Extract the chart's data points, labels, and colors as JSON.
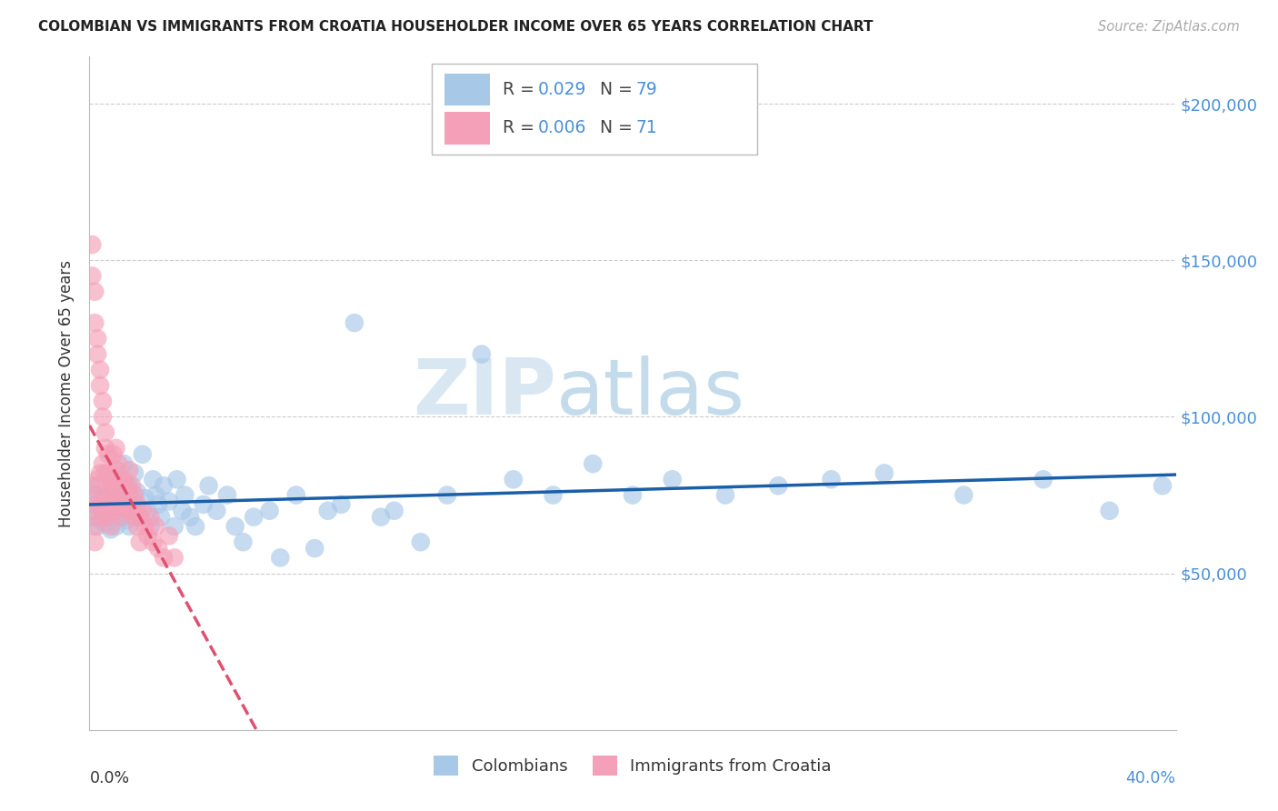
{
  "title": "COLOMBIAN VS IMMIGRANTS FROM CROATIA HOUSEHOLDER INCOME OVER 65 YEARS CORRELATION CHART",
  "source": "Source: ZipAtlas.com",
  "ylabel": "Householder Income Over 65 years",
  "ytick_values": [
    50000,
    100000,
    150000,
    200000
  ],
  "ylim": [
    0,
    215000
  ],
  "xlim": [
    0.0,
    0.41
  ],
  "colombian_color": "#a8c8e8",
  "croatia_color": "#f4a0b8",
  "colombian_line_color": "#1a5fa8",
  "croatia_line_color": "#e05070",
  "watermark_zip": "ZIP",
  "watermark_atlas": "atlas",
  "background_color": "#ffffff",
  "colombians_x": [
    0.001,
    0.002,
    0.002,
    0.003,
    0.003,
    0.004,
    0.004,
    0.005,
    0.005,
    0.006,
    0.006,
    0.007,
    0.007,
    0.008,
    0.008,
    0.009,
    0.009,
    0.01,
    0.01,
    0.011,
    0.011,
    0.012,
    0.013,
    0.013,
    0.014,
    0.015,
    0.015,
    0.016,
    0.017,
    0.018,
    0.019,
    0.02,
    0.021,
    0.022,
    0.023,
    0.024,
    0.025,
    0.026,
    0.027,
    0.028,
    0.03,
    0.032,
    0.033,
    0.035,
    0.036,
    0.038,
    0.04,
    0.043,
    0.045,
    0.048,
    0.052,
    0.055,
    0.058,
    0.062,
    0.068,
    0.072,
    0.078,
    0.085,
    0.09,
    0.095,
    0.1,
    0.11,
    0.115,
    0.125,
    0.135,
    0.148,
    0.16,
    0.175,
    0.19,
    0.205,
    0.22,
    0.24,
    0.26,
    0.28,
    0.3,
    0.33,
    0.36,
    0.385,
    0.405
  ],
  "colombians_y": [
    72000,
    68000,
    75000,
    65000,
    78000,
    73000,
    67000,
    71000,
    69000,
    74000,
    66000,
    72000,
    68000,
    76000,
    64000,
    80000,
    70000,
    75000,
    65000,
    78000,
    72000,
    68000,
    85000,
    73000,
    67000,
    78000,
    65000,
    72000,
    82000,
    76000,
    68000,
    88000,
    74000,
    70000,
    65000,
    80000,
    75000,
    72000,
    68000,
    78000,
    73000,
    65000,
    80000,
    70000,
    75000,
    68000,
    65000,
    72000,
    78000,
    70000,
    75000,
    65000,
    60000,
    68000,
    70000,
    55000,
    75000,
    58000,
    70000,
    72000,
    130000,
    68000,
    70000,
    60000,
    75000,
    120000,
    80000,
    75000,
    85000,
    75000,
    80000,
    75000,
    78000,
    80000,
    82000,
    75000,
    80000,
    70000,
    78000
  ],
  "croatia_x": [
    0.001,
    0.001,
    0.001,
    0.001,
    0.002,
    0.002,
    0.002,
    0.002,
    0.002,
    0.003,
    0.003,
    0.003,
    0.003,
    0.004,
    0.004,
    0.004,
    0.004,
    0.005,
    0.005,
    0.005,
    0.005,
    0.006,
    0.006,
    0.006,
    0.006,
    0.006,
    0.007,
    0.007,
    0.007,
    0.007,
    0.008,
    0.008,
    0.008,
    0.008,
    0.009,
    0.009,
    0.009,
    0.01,
    0.01,
    0.01,
    0.01,
    0.011,
    0.011,
    0.011,
    0.012,
    0.012,
    0.012,
    0.013,
    0.013,
    0.014,
    0.014,
    0.015,
    0.015,
    0.016,
    0.016,
    0.017,
    0.017,
    0.018,
    0.018,
    0.019,
    0.019,
    0.02,
    0.021,
    0.022,
    0.023,
    0.024,
    0.025,
    0.026,
    0.028,
    0.03,
    0.032
  ],
  "croatia_y": [
    155000,
    145000,
    78000,
    70000,
    140000,
    130000,
    75000,
    65000,
    60000,
    125000,
    120000,
    80000,
    72000,
    115000,
    110000,
    82000,
    68000,
    105000,
    100000,
    85000,
    72000,
    95000,
    90000,
    82000,
    75000,
    68000,
    88000,
    82000,
    75000,
    70000,
    80000,
    78000,
    72000,
    65000,
    88000,
    80000,
    72000,
    90000,
    83000,
    78000,
    70000,
    85000,
    78000,
    72000,
    80000,
    75000,
    68000,
    80000,
    72000,
    78000,
    70000,
    83000,
    75000,
    78000,
    70000,
    75000,
    68000,
    72000,
    65000,
    68000,
    60000,
    70000,
    65000,
    62000,
    68000,
    60000,
    65000,
    58000,
    55000,
    62000,
    55000
  ]
}
